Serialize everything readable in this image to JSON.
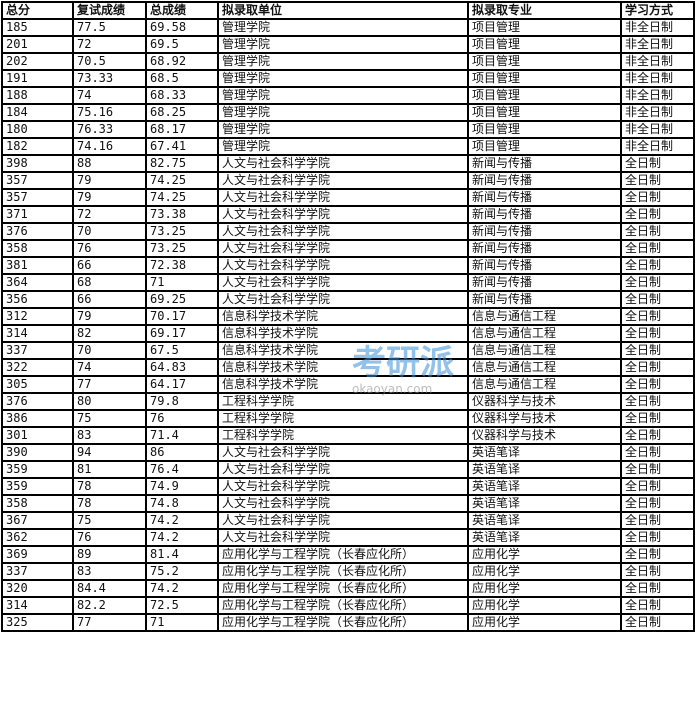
{
  "headers": [
    "总分",
    "复试成绩",
    "总成绩",
    "拟录取单位",
    "拟录取专业",
    "学习方式"
  ],
  "rows": [
    [
      "185",
      "77.5",
      "69.58",
      "管理学院",
      "项目管理",
      "非全日制"
    ],
    [
      "201",
      "72",
      "69.5",
      "管理学院",
      "项目管理",
      "非全日制"
    ],
    [
      "202",
      "70.5",
      "68.92",
      "管理学院",
      "项目管理",
      "非全日制"
    ],
    [
      "191",
      "73.33",
      "68.5",
      "管理学院",
      "项目管理",
      "非全日制"
    ],
    [
      "188",
      "74",
      "68.33",
      "管理学院",
      "项目管理",
      "非全日制"
    ],
    [
      "184",
      "75.16",
      "68.25",
      "管理学院",
      "项目管理",
      "非全日制"
    ],
    [
      "180",
      "76.33",
      "68.17",
      "管理学院",
      "项目管理",
      "非全日制"
    ],
    [
      "182",
      "74.16",
      "67.41",
      "管理学院",
      "项目管理",
      "非全日制"
    ],
    [
      "398",
      "88",
      "82.75",
      "人文与社会科学学院",
      "新闻与传播",
      "全日制"
    ],
    [
      "357",
      "79",
      "74.25",
      "人文与社会科学学院",
      "新闻与传播",
      "全日制"
    ],
    [
      "357",
      "79",
      "74.25",
      "人文与社会科学学院",
      "新闻与传播",
      "全日制"
    ],
    [
      "371",
      "72",
      "73.38",
      "人文与社会科学学院",
      "新闻与传播",
      "全日制"
    ],
    [
      "376",
      "70",
      "73.25",
      "人文与社会科学学院",
      "新闻与传播",
      "全日制"
    ],
    [
      "358",
      "76",
      "73.25",
      "人文与社会科学学院",
      "新闻与传播",
      "全日制"
    ],
    [
      "381",
      "66",
      "72.38",
      "人文与社会科学学院",
      "新闻与传播",
      "全日制"
    ],
    [
      "364",
      "68",
      "71",
      "人文与社会科学学院",
      "新闻与传播",
      "全日制"
    ],
    [
      "356",
      "66",
      "69.25",
      "人文与社会科学学院",
      "新闻与传播",
      "全日制"
    ],
    [
      "312",
      "79",
      "70.17",
      "信息科学技术学院",
      "信息与通信工程",
      "全日制"
    ],
    [
      "314",
      "82",
      "69.17",
      "信息科学技术学院",
      "信息与通信工程",
      "全日制"
    ],
    [
      "337",
      "70",
      "67.5",
      "信息科学技术学院",
      "信息与通信工程",
      "全日制"
    ],
    [
      "322",
      "74",
      "64.83",
      "信息科学技术学院",
      "信息与通信工程",
      "全日制"
    ],
    [
      "305",
      "77",
      "64.17",
      "信息科学技术学院",
      "信息与通信工程",
      "全日制"
    ],
    [
      "376",
      "80",
      "79.8",
      "工程科学学院",
      "仪器科学与技术",
      "全日制"
    ],
    [
      "386",
      "75",
      "76",
      "工程科学学院",
      "仪器科学与技术",
      "全日制"
    ],
    [
      "301",
      "83",
      "71.4",
      "工程科学学院",
      "仪器科学与技术",
      "全日制"
    ],
    [
      "390",
      "94",
      "86",
      "人文与社会科学学院",
      "英语笔译",
      "全日制"
    ],
    [
      "359",
      "81",
      "76.4",
      "人文与社会科学学院",
      "英语笔译",
      "全日制"
    ],
    [
      "359",
      "78",
      "74.9",
      "人文与社会科学学院",
      "英语笔译",
      "全日制"
    ],
    [
      "358",
      "78",
      "74.8",
      "人文与社会科学学院",
      "英语笔译",
      "全日制"
    ],
    [
      "367",
      "75",
      "74.2",
      "人文与社会科学学院",
      "英语笔译",
      "全日制"
    ],
    [
      "362",
      "76",
      "74.2",
      "人文与社会科学学院",
      "英语笔译",
      "全日制"
    ],
    [
      "369",
      "89",
      "81.4",
      "应用化学与工程学院（长春应化所）",
      "应用化学",
      "全日制"
    ],
    [
      "337",
      "83",
      "75.2",
      "应用化学与工程学院（长春应化所）",
      "应用化学",
      "全日制"
    ],
    [
      "320",
      "84.4",
      "74.2",
      "应用化学与工程学院（长春应化所）",
      "应用化学",
      "全日制"
    ],
    [
      "314",
      "82.2",
      "72.5",
      "应用化学与工程学院（长春应化所）",
      "应用化学",
      "全日制"
    ],
    [
      "325",
      "77",
      "71",
      "应用化学与工程学院（长春应化所）",
      "应用化学",
      "全日制"
    ]
  ],
  "watermark": {
    "logo": "考研派",
    "url": "okaoyan.com"
  }
}
